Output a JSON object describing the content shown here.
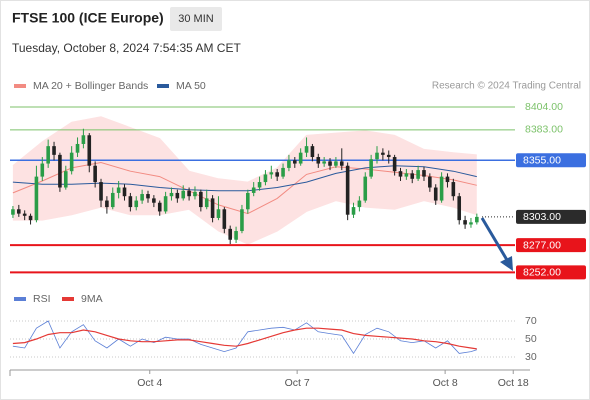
{
  "chart_data": [
    {
      "type": "candlestick",
      "title": "FTSE 100 (ICE Europe)",
      "timeframe": "30 MIN",
      "subtitle": "Tuesday, October 8, 2024 7:54:35 AM CET",
      "credit": "Research © 2024 Trading Central",
      "up_color": "#2a9d47",
      "down_color": "#222222",
      "xlim": [
        -0.5,
        85.5
      ],
      "ylim": [
        8245,
        8415
      ],
      "ohlc": [
        [
          8305,
          8313,
          8302,
          8310
        ],
        [
          8310,
          8314,
          8303,
          8306
        ],
        [
          8306,
          8309,
          8300,
          8304
        ],
        [
          8304,
          8306,
          8296,
          8300
        ],
        [
          8300,
          8350,
          8298,
          8340
        ],
        [
          8340,
          8358,
          8336,
          8352
        ],
        [
          8352,
          8374,
          8348,
          8368
        ],
        [
          8368,
          8372,
          8355,
          8360
        ],
        [
          8360,
          8362,
          8326,
          8330
        ],
        [
          8330,
          8350,
          8328,
          8345
        ],
        [
          8345,
          8368,
          8342,
          8362
        ],
        [
          8362,
          8376,
          8358,
          8370
        ],
        [
          8370,
          8384,
          8366,
          8378
        ],
        [
          8378,
          8380,
          8344,
          8350
        ],
        [
          8350,
          8354,
          8330,
          8335
        ],
        [
          8335,
          8338,
          8312,
          8318
        ],
        [
          8318,
          8322,
          8306,
          8312
        ],
        [
          8312,
          8330,
          8310,
          8325
        ],
        [
          8325,
          8336,
          8320,
          8330
        ],
        [
          8330,
          8333,
          8318,
          8322
        ],
        [
          8322,
          8325,
          8308,
          8312
        ],
        [
          8312,
          8322,
          8309,
          8318
        ],
        [
          8318,
          8328,
          8315,
          8324
        ],
        [
          8324,
          8327,
          8316,
          8320
        ],
        [
          8320,
          8323,
          8312,
          8316
        ],
        [
          8316,
          8318,
          8304,
          8308
        ],
        [
          8308,
          8326,
          8306,
          8322
        ],
        [
          8322,
          8330,
          8318,
          8325
        ],
        [
          8325,
          8328,
          8316,
          8320
        ],
        [
          8320,
          8332,
          8318,
          8327
        ],
        [
          8327,
          8330,
          8318,
          8322
        ],
        [
          8322,
          8331,
          8319,
          8326
        ],
        [
          8326,
          8328,
          8308,
          8312
        ],
        [
          8312,
          8328,
          8310,
          8320
        ],
        [
          8320,
          8323,
          8298,
          8302
        ],
        [
          8302,
          8322,
          8300,
          8310
        ],
        [
          8310,
          8312,
          8288,
          8292
        ],
        [
          8292,
          8295,
          8278,
          8282
        ],
        [
          8282,
          8294,
          8279,
          8290
        ],
        [
          8290,
          8314,
          8288,
          8310
        ],
        [
          8310,
          8328,
          8306,
          8325
        ],
        [
          8325,
          8335,
          8322,
          8330
        ],
        [
          8330,
          8340,
          8327,
          8335
        ],
        [
          8335,
          8346,
          8332,
          8342
        ],
        [
          8342,
          8350,
          8338,
          8344
        ],
        [
          8344,
          8347,
          8336,
          8340
        ],
        [
          8340,
          8352,
          8338,
          8348
        ],
        [
          8348,
          8360,
          8345,
          8355
        ],
        [
          8355,
          8358,
          8348,
          8352
        ],
        [
          8352,
          8366,
          8350,
          8362
        ],
        [
          8362,
          8376,
          8358,
          8368
        ],
        [
          8368,
          8370,
          8354,
          8358
        ],
        [
          8358,
          8361,
          8348,
          8352
        ],
        [
          8352,
          8358,
          8349,
          8354
        ],
        [
          8354,
          8357,
          8346,
          8350
        ],
        [
          8350,
          8358,
          8348,
          8354
        ],
        [
          8354,
          8366,
          8346,
          8350
        ],
        [
          8350,
          8353,
          8300,
          8305
        ],
        [
          8305,
          8316,
          8302,
          8312
        ],
        [
          8312,
          8322,
          8308,
          8318
        ],
        [
          8318,
          8344,
          8316,
          8340
        ],
        [
          8340,
          8360,
          8338,
          8356
        ],
        [
          8356,
          8368,
          8352,
          8362
        ],
        [
          8362,
          8366,
          8355,
          8360
        ],
        [
          8360,
          8364,
          8352,
          8358
        ],
        [
          8358,
          8360,
          8341,
          8345
        ],
        [
          8345,
          8348,
          8336,
          8340
        ],
        [
          8340,
          8347,
          8337,
          8343
        ],
        [
          8343,
          8346,
          8334,
          8338
        ],
        [
          8338,
          8350,
          8336,
          8346
        ],
        [
          8346,
          8349,
          8336,
          8340
        ],
        [
          8340,
          8343,
          8326,
          8330
        ],
        [
          8330,
          8333,
          8314,
          8318
        ],
        [
          8318,
          8344,
          8316,
          8340
        ],
        [
          8340,
          8343,
          8330,
          8335
        ],
        [
          8335,
          8338,
          8318,
          8322
        ],
        [
          8322,
          8325,
          8296,
          8300
        ],
        [
          8300,
          8304,
          8292,
          8296
        ],
        [
          8296,
          8302,
          8293,
          8298
        ],
        [
          8298,
          8306,
          8296,
          8303
        ]
      ],
      "series": [
        {
          "name": "MA 20 + Bollinger Bands",
          "color": "#f28b82",
          "band_color": "#fde2e2",
          "x": [
            0,
            5,
            10,
            15,
            20,
            25,
            30,
            35,
            40,
            45,
            50,
            55,
            60,
            65,
            70,
            75,
            79
          ],
          "upper": [
            8350,
            8372,
            8390,
            8395,
            8385,
            8375,
            8345,
            8338,
            8335,
            8348,
            8378,
            8380,
            8382,
            8378,
            8365,
            8362,
            8360
          ],
          "values": [
            8325,
            8336,
            8348,
            8353,
            8345,
            8340,
            8327,
            8314,
            8306,
            8320,
            8342,
            8349,
            8347,
            8344,
            8341,
            8337,
            8332
          ],
          "lower": [
            8300,
            8300,
            8305,
            8312,
            8305,
            8305,
            8310,
            8290,
            8278,
            8290,
            8308,
            8318,
            8312,
            8310,
            8318,
            8312,
            8305
          ]
        },
        {
          "name": "MA 50",
          "color": "#2a5a9c",
          "x": [
            0,
            5,
            10,
            15,
            20,
            25,
            30,
            35,
            40,
            45,
            50,
            55,
            60,
            65,
            70,
            75,
            79
          ],
          "values": [
            8335,
            8333,
            8333,
            8334,
            8333,
            8330,
            8328,
            8327,
            8327,
            8330,
            8335,
            8343,
            8348,
            8350,
            8349,
            8345,
            8340
          ]
        }
      ],
      "levels": [
        {
          "value": 8404,
          "label": "8404.00",
          "color": "#7cc26a",
          "line": "solid",
          "boxed": false
        },
        {
          "value": 8383,
          "label": "8383.00",
          "color": "#7cc26a",
          "line": "solid",
          "boxed": false
        },
        {
          "value": 8355,
          "label": "8355.00",
          "color": "#3b6fe0",
          "line": "solid",
          "boxed": true
        },
        {
          "value": 8303,
          "label": "8303.00",
          "color": "#2b2b2b",
          "line": "dotted",
          "boxed": true
        },
        {
          "value": 8277,
          "label": "8277.00",
          "color": "#e8141b",
          "line": "solid",
          "boxed": true
        },
        {
          "value": 8252,
          "label": "8252.00",
          "color": "#e8141b",
          "line": "solid",
          "boxed": true
        }
      ]
    },
    {
      "type": "line",
      "xlim": [
        -0.5,
        85.5
      ],
      "ylim": [
        20,
        80
      ],
      "yticks": [
        30,
        50,
        70
      ],
      "grid": true,
      "xticks": [
        {
          "value": 23.3,
          "label": "Oct 4"
        },
        {
          "value": 48.4,
          "label": "Oct 7"
        },
        {
          "value": 73.6,
          "label": "Oct 8"
        },
        {
          "value": 85.2,
          "label": "Oct 18"
        }
      ],
      "x": [
        0,
        2,
        4,
        6,
        8,
        10,
        12,
        14,
        16,
        18,
        20,
        22,
        24,
        26,
        28,
        30,
        32,
        34,
        36,
        38,
        40,
        42,
        44,
        46,
        48,
        50,
        52,
        54,
        56,
        58,
        60,
        62,
        64,
        66,
        68,
        70,
        72,
        74,
        76,
        78,
        79
      ],
      "series": [
        {
          "name": "RSI",
          "color": "#5b7fd6",
          "values": [
            42,
            40,
            62,
            70,
            40,
            58,
            66,
            48,
            40,
            50,
            42,
            50,
            46,
            52,
            50,
            50,
            44,
            40,
            36,
            40,
            58,
            60,
            62,
            63,
            60,
            68,
            58,
            56,
            54,
            34,
            55,
            62,
            58,
            48,
            46,
            48,
            40,
            48,
            34,
            36,
            38
          ]
        },
        {
          "name": "9MA",
          "color": "#e53935",
          "values": [
            45,
            46,
            50,
            55,
            57,
            57,
            60,
            58,
            54,
            50,
            48,
            47,
            47,
            48,
            49,
            49,
            47,
            45,
            43,
            42,
            45,
            49,
            53,
            57,
            60,
            62,
            62,
            61,
            60,
            56,
            54,
            53,
            52,
            51,
            50,
            48,
            47,
            45,
            42,
            40,
            39
          ]
        }
      ]
    }
  ]
}
